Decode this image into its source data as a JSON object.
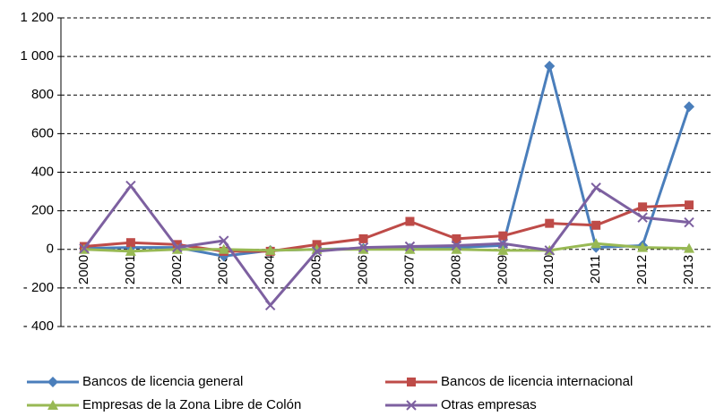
{
  "chart_data": {
    "type": "line",
    "categories": [
      "2000",
      "2001",
      "2002",
      "2003",
      "2004",
      "2005",
      "2006",
      "2007",
      "2008",
      "2009",
      "2010",
      "2011",
      "2012",
      "2013"
    ],
    "series": [
      {
        "name": "Bancos de licencia general",
        "color": "#4a7ebb",
        "marker": "diamond",
        "values": [
          5,
          10,
          10,
          -35,
          -5,
          0,
          5,
          5,
          10,
          20,
          950,
          10,
          20,
          740
        ]
      },
      {
        "name": "Bancos de licencia internacional",
        "color": "#be4b48",
        "marker": "square",
        "values": [
          15,
          35,
          25,
          -10,
          -10,
          25,
          55,
          145,
          55,
          70,
          135,
          125,
          220,
          230
        ]
      },
      {
        "name": "Empresas de la Zona Libre de Colón",
        "color": "#98b954",
        "marker": "triangle",
        "values": [
          0,
          -10,
          0,
          0,
          -5,
          0,
          0,
          0,
          0,
          -5,
          -5,
          30,
          10,
          5
        ]
      },
      {
        "name": "Otras empresas",
        "color": "#7d60a0",
        "marker": "x",
        "values": [
          5,
          330,
          10,
          45,
          -290,
          -10,
          10,
          15,
          20,
          30,
          -5,
          320,
          165,
          140
        ]
      }
    ],
    "ylim": [
      -400,
      1200
    ],
    "yticks": [
      {
        "value": -400,
        "label": "- 400"
      },
      {
        "value": -200,
        "label": "- 200"
      },
      0,
      200,
      400,
      600,
      800,
      {
        "value": 1000,
        "label": "1 000"
      },
      {
        "value": 1200,
        "label": "1 200"
      }
    ],
    "grid": true,
    "legend": "bottom"
  }
}
